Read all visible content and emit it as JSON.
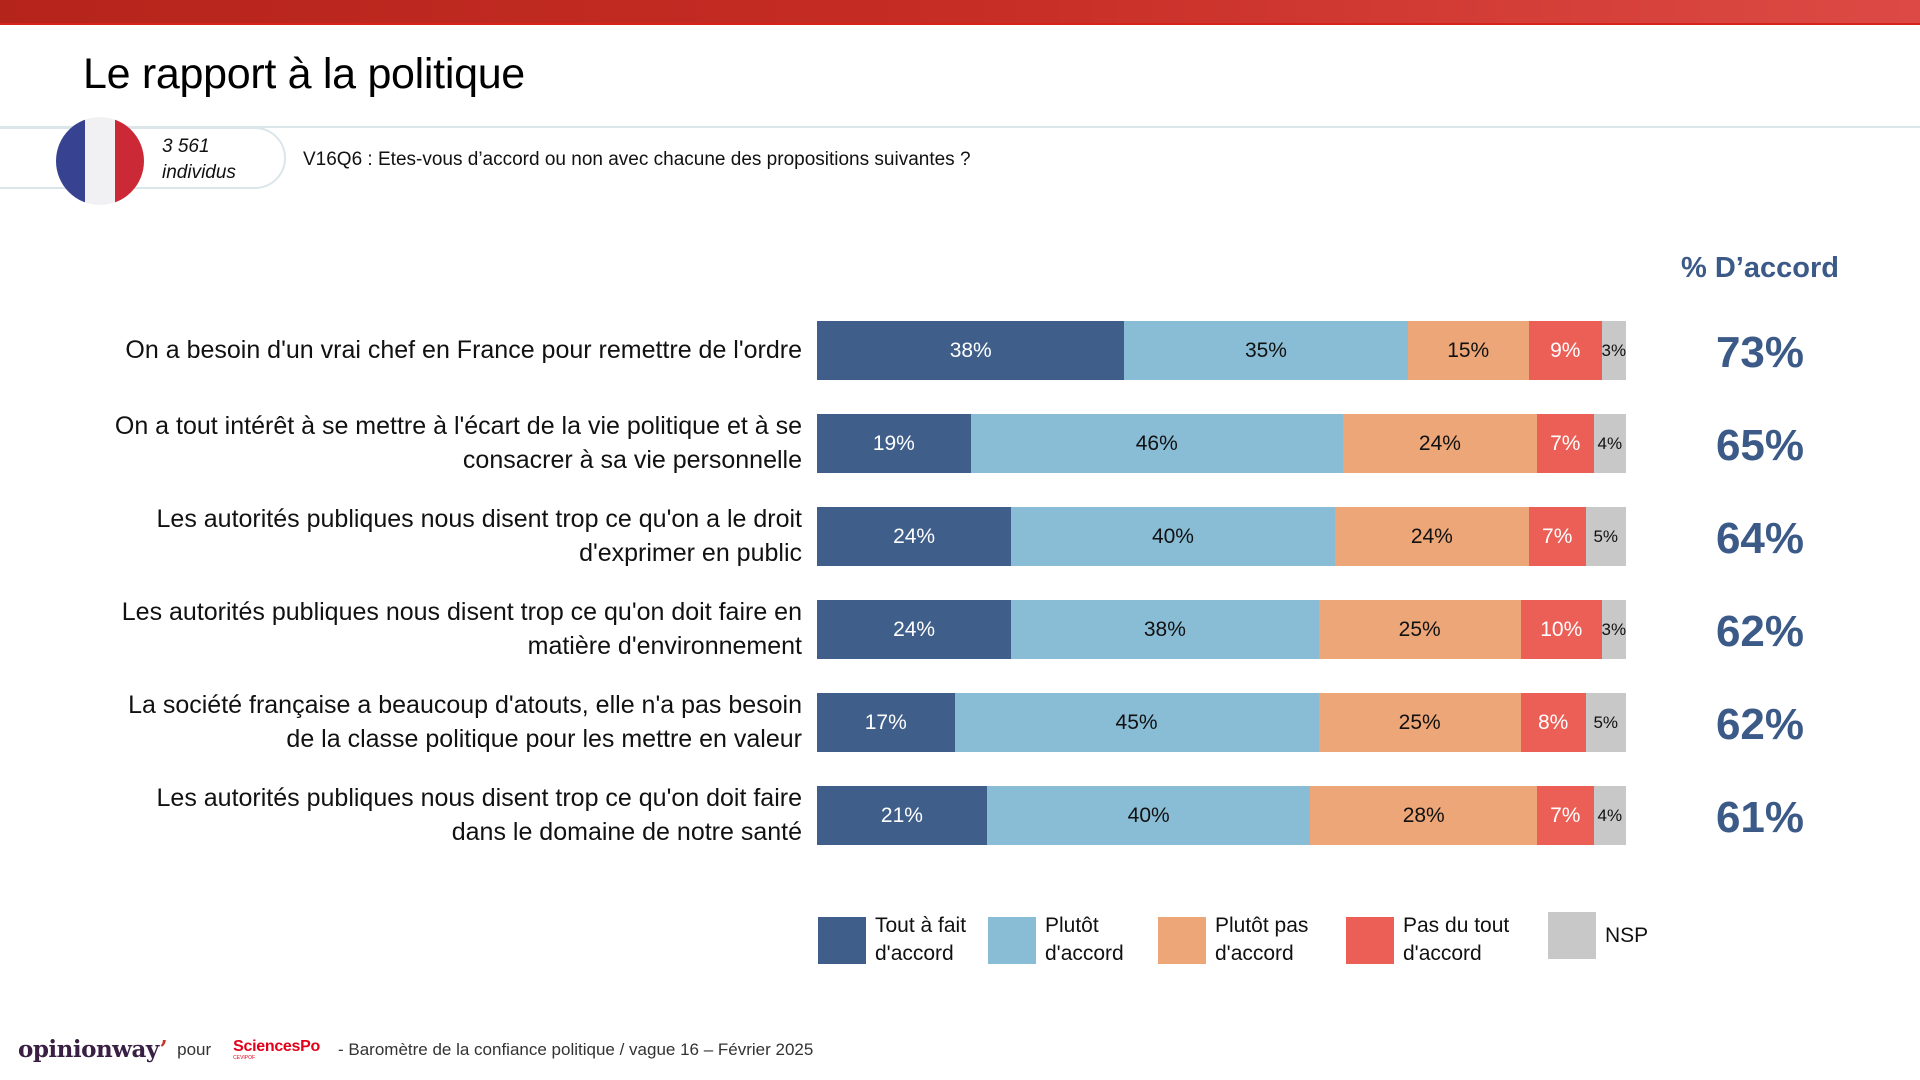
{
  "header": {
    "title": "Le rapport à la politique",
    "sample_count": "3 561",
    "sample_unit": "individus",
    "question": "V16Q6 : Etes-vous d’accord ou non avec chacune des propositions suivantes ?",
    "flag_icon": "france-flag-icon",
    "flag_colors": [
      "#374390",
      "#f1f1f3",
      "#cc2936"
    ]
  },
  "accord_header": "% D’accord",
  "colors": {
    "tout_a_fait": "#3f5f8a",
    "plutot": "#89bdd6",
    "plutot_pas": "#eca677",
    "pas_du_tout": "#ec5f57",
    "nsp": "#c8c8c8",
    "accent_blue": "#3c5a88",
    "top_bar": "#c62d24"
  },
  "chart_data": {
    "type": "bar",
    "orientation": "horizontal",
    "stacked": true,
    "title": "Le rapport à la politique",
    "subtitle": "V16Q6 : Etes-vous d’accord ou non avec chacune des propositions suivantes ?",
    "unit": "%",
    "xlim": [
      0,
      100
    ],
    "grid": false,
    "legend_position": "bottom",
    "categories": [
      [
        "On a besoin d'un vrai chef en France pour remettre de l'ordre"
      ],
      [
        "On a tout intérêt à se mettre à l'écart de la vie politique et à se",
        "consacrer à sa vie personnelle"
      ],
      [
        "Les autorités publiques nous disent trop ce qu'on a le droit",
        "d'exprimer en public"
      ],
      [
        "Les autorités publiques nous disent trop ce qu'on doit faire en",
        "matière d'environnement"
      ],
      [
        "La société française a beaucoup d'atouts, elle n'a pas besoin",
        "de la classe politique pour les mettre en valeur"
      ],
      [
        "Les autorités publiques nous disent trop ce qu'on doit faire",
        "dans le domaine de notre santé"
      ]
    ],
    "series": [
      {
        "name": "Tout à fait d'accord",
        "legend_lines": [
          "Tout à fait",
          "d'accord"
        ],
        "color": "#3f5f8a",
        "label_color": "#ffffff",
        "values": [
          38,
          19,
          24,
          24,
          17,
          21
        ]
      },
      {
        "name": "Plutôt d'accord",
        "legend_lines": [
          "Plutôt",
          "d'accord"
        ],
        "color": "#89bdd6",
        "label_color": "#111111",
        "values": [
          35,
          46,
          40,
          38,
          45,
          40
        ]
      },
      {
        "name": "Plutôt pas d'accord",
        "legend_lines": [
          "Plutôt pas",
          "d'accord"
        ],
        "color": "#eca677",
        "label_color": "#111111",
        "values": [
          15,
          24,
          24,
          25,
          25,
          28
        ]
      },
      {
        "name": "Pas du tout d'accord",
        "legend_lines": [
          "Pas du tout",
          "d'accord"
        ],
        "color": "#ec5f57",
        "label_color": "#ffffff",
        "values": [
          9,
          7,
          7,
          10,
          8,
          7
        ]
      },
      {
        "name": "NSP",
        "legend_lines": [
          "NSP"
        ],
        "color": "#c8c8c8",
        "label_color": "#111111",
        "values": [
          3,
          4,
          5,
          3,
          5,
          4
        ]
      }
    ],
    "total_agree": {
      "label": "% D’accord",
      "values": [
        73,
        65,
        64,
        62,
        62,
        61
      ]
    }
  },
  "footer": {
    "brand": "opinionway",
    "brand_suffix": "’",
    "pour": "pour",
    "partner": "SciencesPo",
    "partner_sub": "CEVIPOF",
    "caption": "-  Baromètre de la confiance politique / vague 16 – Février 2025"
  }
}
